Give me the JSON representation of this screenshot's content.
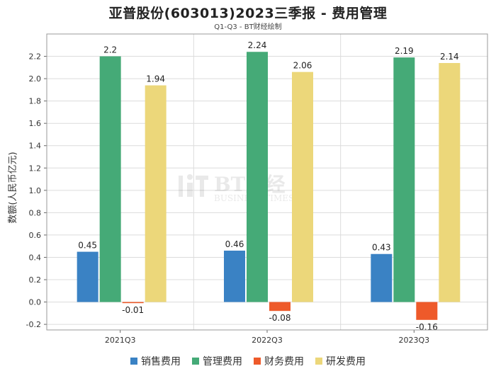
{
  "chart_data": {
    "type": "bar",
    "title": "亚普股份(603013)2023三季报 - 费用管理",
    "subtitle": "Q1-Q3 - BT财经绘制",
    "ylabel": "数额(人民币亿元)",
    "xlabel": "",
    "categories": [
      "2021Q3",
      "2022Q3",
      "2023Q3"
    ],
    "ylim": [
      -0.25,
      2.4
    ],
    "yticks": [
      -0.2,
      0.0,
      0.2,
      0.4,
      0.6,
      0.8,
      1.0,
      1.2,
      1.4,
      1.6,
      1.8,
      2.0,
      2.2
    ],
    "grid": true,
    "legend_position": "bottom",
    "series": [
      {
        "name": "销售费用",
        "color": "#3a82c4",
        "values": [
          0.45,
          0.46,
          0.43
        ]
      },
      {
        "name": "管理费用",
        "color": "#45aa77",
        "values": [
          2.2,
          2.24,
          2.19
        ]
      },
      {
        "name": "财务费用",
        "color": "#ee5a2a",
        "values": [
          -0.01,
          -0.08,
          -0.16
        ]
      },
      {
        "name": "研发费用",
        "color": "#ecd77a",
        "values": [
          1.94,
          2.06,
          2.14
        ]
      }
    ]
  },
  "watermark": {
    "main": "BT财经",
    "sub": "BUSINESS TIMES"
  }
}
